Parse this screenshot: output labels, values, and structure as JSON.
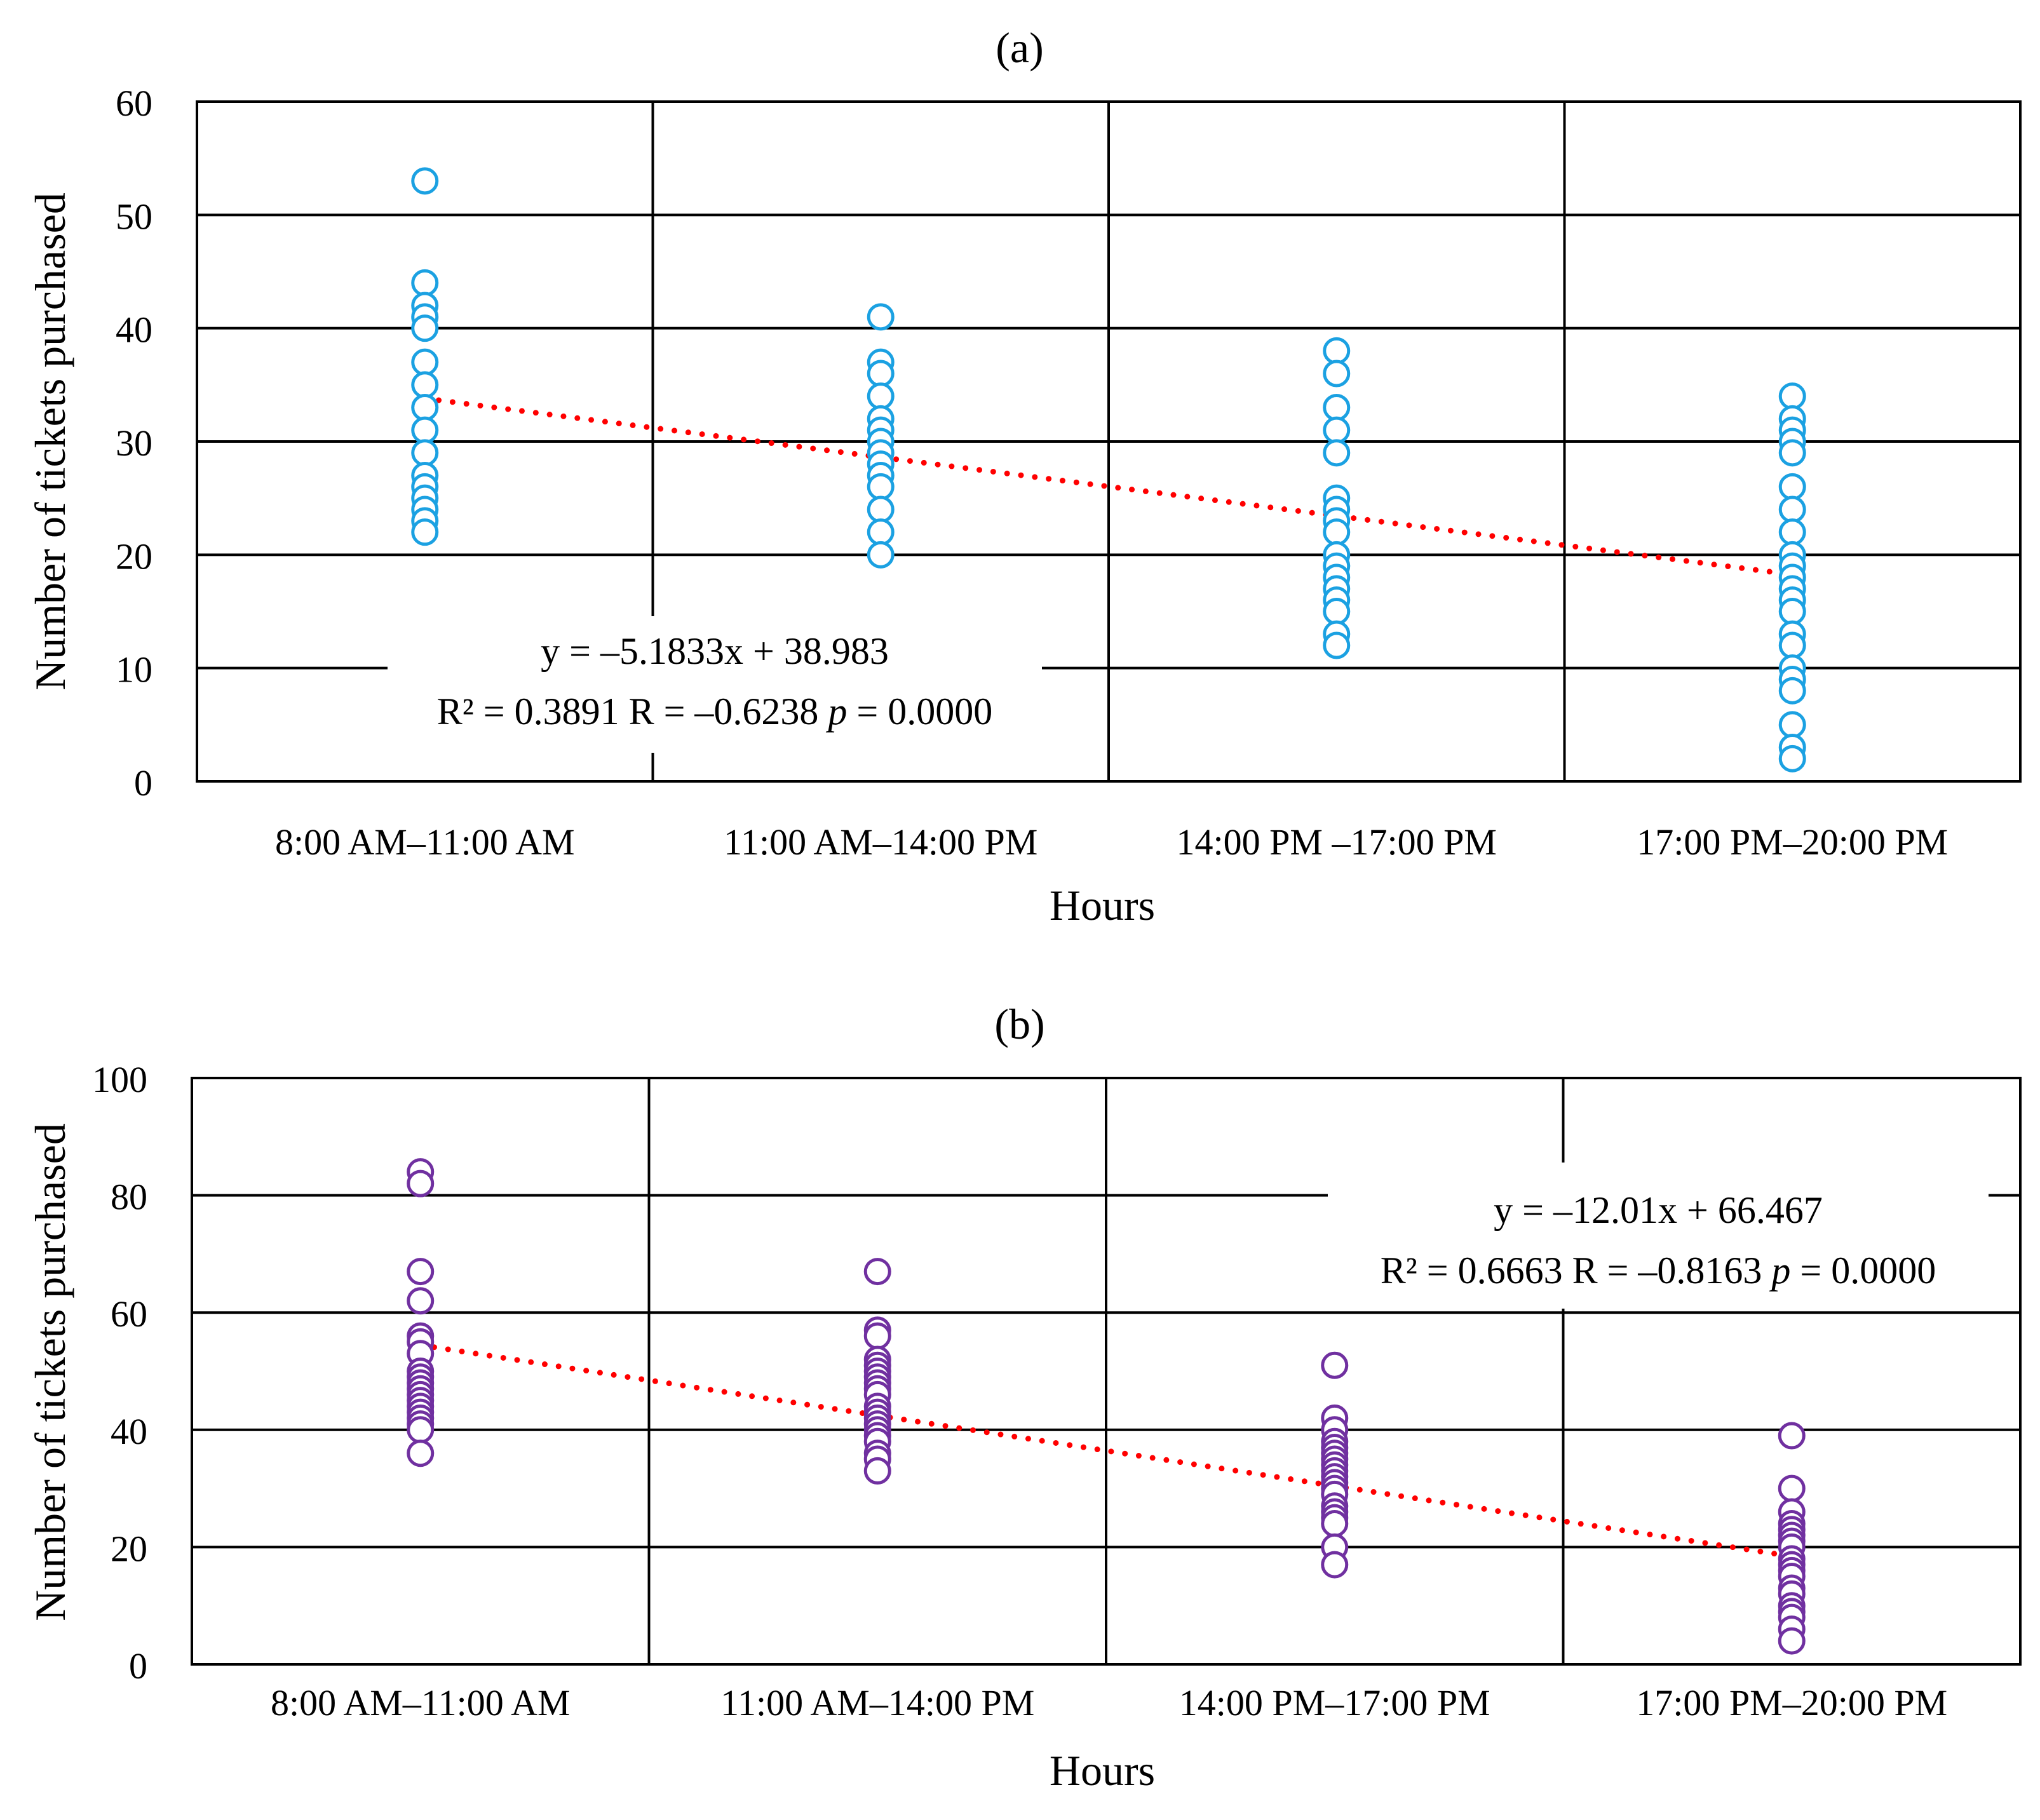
{
  "chart_data": [
    {
      "type": "scatter",
      "panel_label": "(a)",
      "categories": [
        "8:00 AM–11:00 AM",
        "11:00 AM–14:00 PM",
        "14:00 PM –17:00 PM",
        "17:00 PM–20:00 PM"
      ],
      "xlabel": "Hours",
      "ylabel": "Number of tickets purchased",
      "ylim": [
        0,
        60
      ],
      "yticks": [
        0,
        10,
        20,
        30,
        40,
        50,
        60
      ],
      "grid": true,
      "series": [
        {
          "name": "Tickets",
          "color": "#1BA1E2",
          "marker": "open-circle",
          "points": [
            {
              "x": 1,
              "y": [
                53,
                44,
                42,
                41,
                40,
                37,
                35,
                33,
                31,
                29,
                27,
                26,
                25,
                24,
                23,
                22
              ]
            },
            {
              "x": 2,
              "y": [
                41,
                37,
                36,
                34,
                32,
                31,
                30,
                29,
                28,
                27,
                26,
                24,
                22,
                20
              ]
            },
            {
              "x": 3,
              "y": [
                38,
                36,
                33,
                31,
                29,
                25,
                24,
                23,
                22,
                20,
                19,
                18,
                17,
                16,
                15,
                13,
                12
              ]
            },
            {
              "x": 4,
              "y": [
                34,
                32,
                31,
                30,
                29,
                26,
                24,
                22,
                20,
                19,
                18,
                17,
                16,
                15,
                13,
                12,
                10,
                9,
                8,
                5,
                3,
                2
              ]
            }
          ]
        }
      ],
      "trendline": {
        "slope": -5.1833,
        "intercept": 38.983,
        "color": "#FF0000",
        "style": "dotted"
      },
      "annotation": {
        "equation": "y = –5.1833x + 38.983",
        "stats_prefix": "R² = 0.3891 R = –0.6238 ",
        "p_symbol": "p",
        "p_value": " = 0.0000"
      }
    },
    {
      "type": "scatter",
      "panel_label": "(b)",
      "categories": [
        "8:00 AM–11:00 AM",
        "11:00 AM–14:00 PM",
        "14:00 PM–17:00 PM",
        "17:00 PM–20:00 PM"
      ],
      "xlabel": "Hours",
      "ylabel": "Number of tickets purchased",
      "ylim": [
        0,
        100
      ],
      "yticks": [
        0,
        20,
        40,
        60,
        80,
        100
      ],
      "grid": true,
      "series": [
        {
          "name": "Tickets",
          "color": "#7030A0",
          "marker": "open-circle",
          "points": [
            {
              "x": 1,
              "y": [
                84,
                82,
                67,
                62,
                56,
                55,
                53,
                50,
                49,
                48,
                47,
                46,
                45,
                44,
                43,
                42,
                41,
                40,
                36
              ]
            },
            {
              "x": 2,
              "y": [
                67,
                57,
                56,
                52,
                51,
                50,
                49,
                48,
                47,
                46,
                44,
                43,
                42,
                41,
                40,
                39,
                38,
                36,
                35,
                33
              ]
            },
            {
              "x": 3,
              "y": [
                51,
                42,
                40,
                38,
                37,
                36,
                35,
                34,
                33,
                32,
                31,
                30,
                29,
                27,
                26,
                25,
                24,
                20,
                17
              ]
            },
            {
              "x": 4,
              "y": [
                39,
                30,
                26,
                24,
                23,
                22,
                21,
                20,
                18,
                17,
                16,
                15,
                13,
                12,
                10,
                9,
                8,
                6,
                4
              ]
            }
          ]
        }
      ],
      "trendline": {
        "slope": -12.01,
        "intercept": 66.467,
        "color": "#FF0000",
        "style": "dotted"
      },
      "annotation": {
        "equation": "y = –12.01x + 66.467",
        "stats_prefix": "R² = 0.6663 R = –0.8163 ",
        "p_symbol": "p",
        "p_value": " = 0.0000"
      }
    }
  ]
}
